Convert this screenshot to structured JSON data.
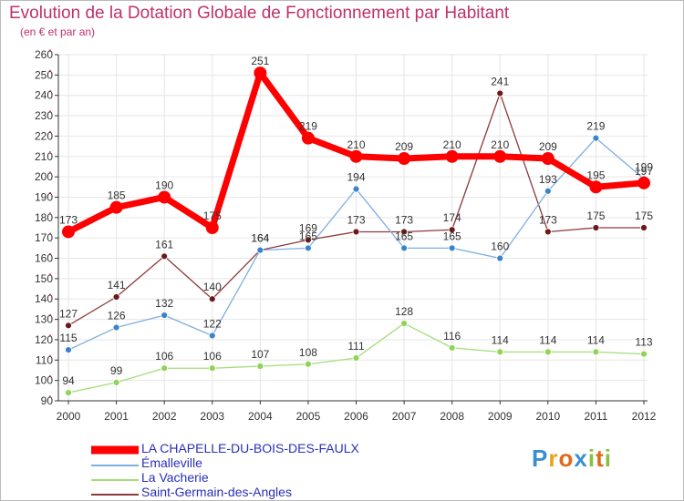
{
  "title": "Evolution de la Dotation Globale de Fonctionnement par Habitant",
  "subtitle": "(en € et par an)",
  "logo": "Proxiti",
  "chart_data": {
    "type": "line",
    "categories": [
      "2000",
      "2001",
      "2002",
      "2003",
      "2004",
      "2005",
      "2006",
      "2007",
      "2008",
      "2009",
      "2010",
      "2011",
      "2012"
    ],
    "ylim": [
      90,
      260
    ],
    "yticks": [
      90,
      100,
      110,
      120,
      130,
      140,
      150,
      160,
      170,
      180,
      190,
      200,
      210,
      220,
      230,
      240,
      250,
      260
    ],
    "grid": true,
    "legend_position": "bottom-left",
    "series": [
      {
        "name": "LA CHAPELLE-DU-BOIS-DES-FAULX",
        "color": "#ff0000",
        "marker": "#ff0000",
        "width": 7,
        "dot": 7,
        "values": [
          173,
          185,
          190,
          175,
          251,
          219,
          210,
          209,
          210,
          210,
          209,
          195,
          197
        ],
        "labels": [
          "173",
          "185",
          "190",
          "175",
          "251",
          "219",
          "210",
          "209",
          "210",
          "210",
          "209",
          "195",
          "197"
        ]
      },
      {
        "name": "Émalleville",
        "color": "#7faede",
        "marker": "#3a84cc",
        "width": 1.3,
        "dot": 3.5,
        "values": [
          115,
          126,
          132,
          122,
          164,
          165,
          194,
          165,
          165,
          160,
          193,
          219,
          199
        ],
        "labels": [
          "115",
          "126",
          "132",
          "122",
          "164",
          "165",
          "194",
          "165",
          "165",
          "160",
          "193",
          "219",
          "199"
        ]
      },
      {
        "name": "La Vacherie",
        "color": "#a6dd7a",
        "marker": "#8fd455",
        "width": 1.3,
        "dot": 3.5,
        "values": [
          94,
          99,
          106,
          106,
          107,
          108,
          111,
          128,
          116,
          114,
          114,
          114,
          113
        ],
        "labels": [
          "94",
          "99",
          "106",
          "106",
          "107",
          "108",
          "111",
          "128",
          "116",
          "114",
          "114",
          "114",
          "113"
        ]
      },
      {
        "name": "Saint-Germain-des-Angles",
        "color": "#8c3a3a",
        "marker": "#6a1a1a",
        "width": 1.3,
        "dot": 3.5,
        "values": [
          127,
          141,
          161,
          140,
          164,
          169,
          173,
          173,
          174,
          241,
          173,
          175,
          175
        ],
        "labels": [
          "127",
          "141",
          "161",
          "140",
          "164",
          "169",
          "173",
          "173",
          "174",
          "241",
          "173",
          "175",
          "175"
        ]
      }
    ]
  }
}
